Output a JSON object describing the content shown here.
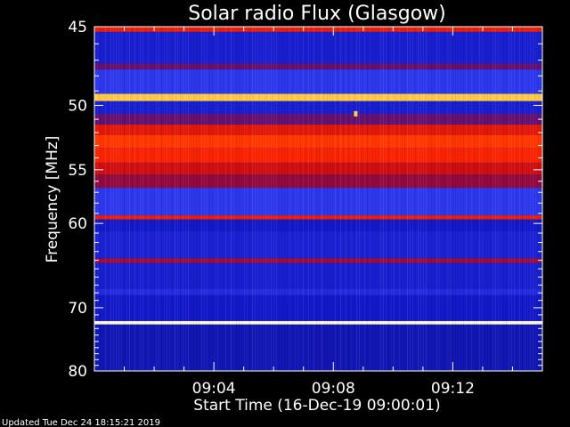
{
  "chart_data": {
    "type": "heatmap",
    "title": "Solar radio Flux (Glasgow)",
    "ylabel": "Frequency [MHz]",
    "xlabel": "Start Time (16-Dec-19 09:00:01)",
    "y_ticks": [
      "45",
      "50",
      "55",
      "60",
      "70",
      "80"
    ],
    "y_tick_values": [
      45,
      50,
      55,
      60,
      70,
      80
    ],
    "y_minor_ticks": [
      46,
      47,
      48,
      49,
      51,
      52,
      53,
      54,
      56,
      57,
      58,
      59,
      61,
      62,
      63,
      64,
      65,
      66,
      67,
      68,
      69,
      71,
      72,
      73,
      74,
      75,
      76,
      77,
      78,
      79
    ],
    "x_ticks": [
      "09:04",
      "09:08",
      "09:12"
    ],
    "x_tick_values_min": [
      4,
      8,
      12
    ],
    "x_range_min": [
      0,
      15
    ],
    "ylim": [
      45,
      80
    ],
    "y_scale": "reciprocal",
    "colormap": "blue-red-yellow-white",
    "bands": [
      {
        "freq_from": 45.0,
        "freq_to": 45.3,
        "level": 0.55
      },
      {
        "freq_from": 45.3,
        "freq_to": 47.2,
        "level": 0.12
      },
      {
        "freq_from": 47.2,
        "freq_to": 47.6,
        "level": 0.3
      },
      {
        "freq_from": 47.6,
        "freq_to": 49.2,
        "level": 0.2
      },
      {
        "freq_from": 49.2,
        "freq_to": 49.7,
        "level": 0.85
      },
      {
        "freq_from": 49.7,
        "freq_to": 50.6,
        "level": 0.12
      },
      {
        "freq_from": 50.6,
        "freq_to": 51.4,
        "level": 0.3
      },
      {
        "freq_from": 51.4,
        "freq_to": 52.2,
        "level": 0.52
      },
      {
        "freq_from": 52.2,
        "freq_to": 53.2,
        "level": 0.62
      },
      {
        "freq_from": 53.2,
        "freq_to": 54.4,
        "level": 0.58
      },
      {
        "freq_from": 54.4,
        "freq_to": 55.4,
        "level": 0.47
      },
      {
        "freq_from": 55.4,
        "freq_to": 56.6,
        "level": 0.37
      },
      {
        "freq_from": 56.6,
        "freq_to": 59.2,
        "level": 0.2
      },
      {
        "freq_from": 59.2,
        "freq_to": 59.6,
        "level": 0.55
      },
      {
        "freq_from": 59.6,
        "freq_to": 60.8,
        "level": 0.1
      },
      {
        "freq_from": 60.8,
        "freq_to": 63.8,
        "level": 0.13
      },
      {
        "freq_from": 63.8,
        "freq_to": 64.3,
        "level": 0.4
      },
      {
        "freq_from": 64.3,
        "freq_to": 67.5,
        "level": 0.12
      },
      {
        "freq_from": 67.5,
        "freq_to": 68.3,
        "level": 0.16
      },
      {
        "freq_from": 68.3,
        "freq_to": 71.9,
        "level": 0.1
      },
      {
        "freq_from": 71.9,
        "freq_to": 72.4,
        "level": 0.98
      },
      {
        "freq_from": 72.4,
        "freq_to": 80.0,
        "level": 0.08
      }
    ],
    "burst_point": {
      "time_min": 8.75,
      "freq": 50.6,
      "level": 0.85
    }
  },
  "footer": {
    "updated": "Updated Tue Dec 24 18:15:21 2019"
  }
}
